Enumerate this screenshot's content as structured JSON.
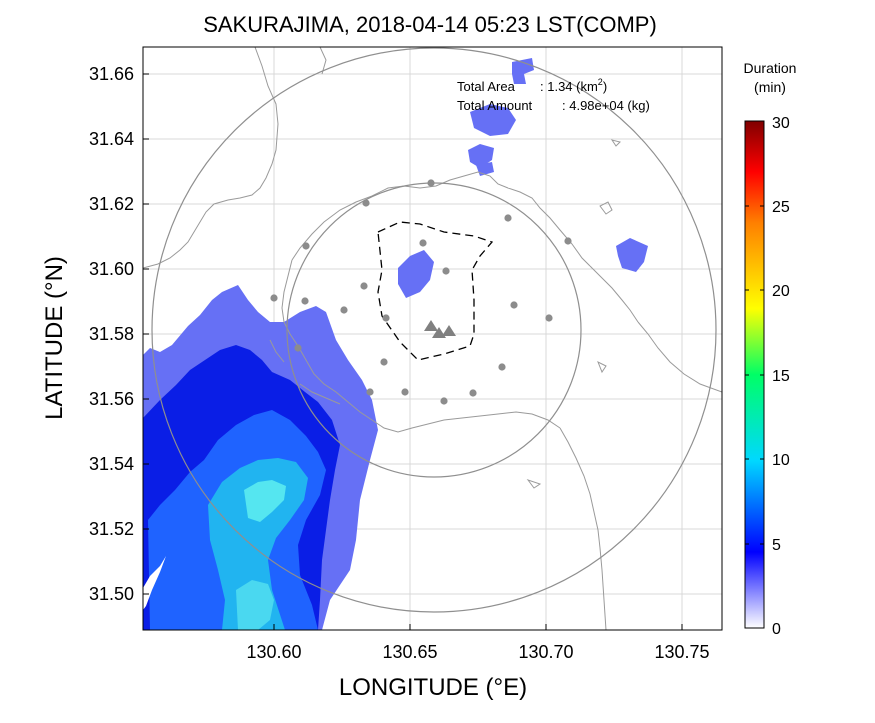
{
  "title": "SAKURAJIMA, 2018-04-14 05:23 LST(COMP)",
  "axes": {
    "xlabel": "LONGITUDE (°E)",
    "ylabel": "LATITUDE (°N)",
    "xlim": [
      130.552,
      130.765
    ],
    "ylim": [
      31.4875,
      31.6665
    ],
    "xticks": [
      "130.60",
      "130.65",
      "130.70",
      "130.75"
    ],
    "yticks": [
      "31.50",
      "31.52",
      "31.54",
      "31.56",
      "31.58",
      "31.60",
      "31.62",
      "31.64",
      "31.66"
    ],
    "grid": true
  },
  "annotations": {
    "area_label": "Total Area",
    "area_value": ": 1.34 (km",
    "area_sup": "2",
    "area_close": ")",
    "amount_label": "Total Amount",
    "amount_value": ": 4.98e+04 (kg)"
  },
  "colorbar": {
    "title_line1": "Duration",
    "title_line2": "(min)",
    "ticks": [
      "0",
      "5",
      "10",
      "15",
      "20",
      "25",
      "30"
    ],
    "range": [
      0,
      30
    ],
    "stops": [
      "#ffffff",
      "#0000ff",
      "#00e5ff",
      "#00ff00",
      "#ffff00",
      "#ff8000",
      "#ff0000",
      "#800000"
    ]
  },
  "map": {
    "vent_symbol": "triangle",
    "observation_symbol": "circle",
    "ash_colors": {
      "light": "#6670f5",
      "dark": "#0a1ee6",
      "mid": "#1f63ff",
      "cyan": "#21b4f0",
      "bright": "#55e6f0"
    }
  }
}
